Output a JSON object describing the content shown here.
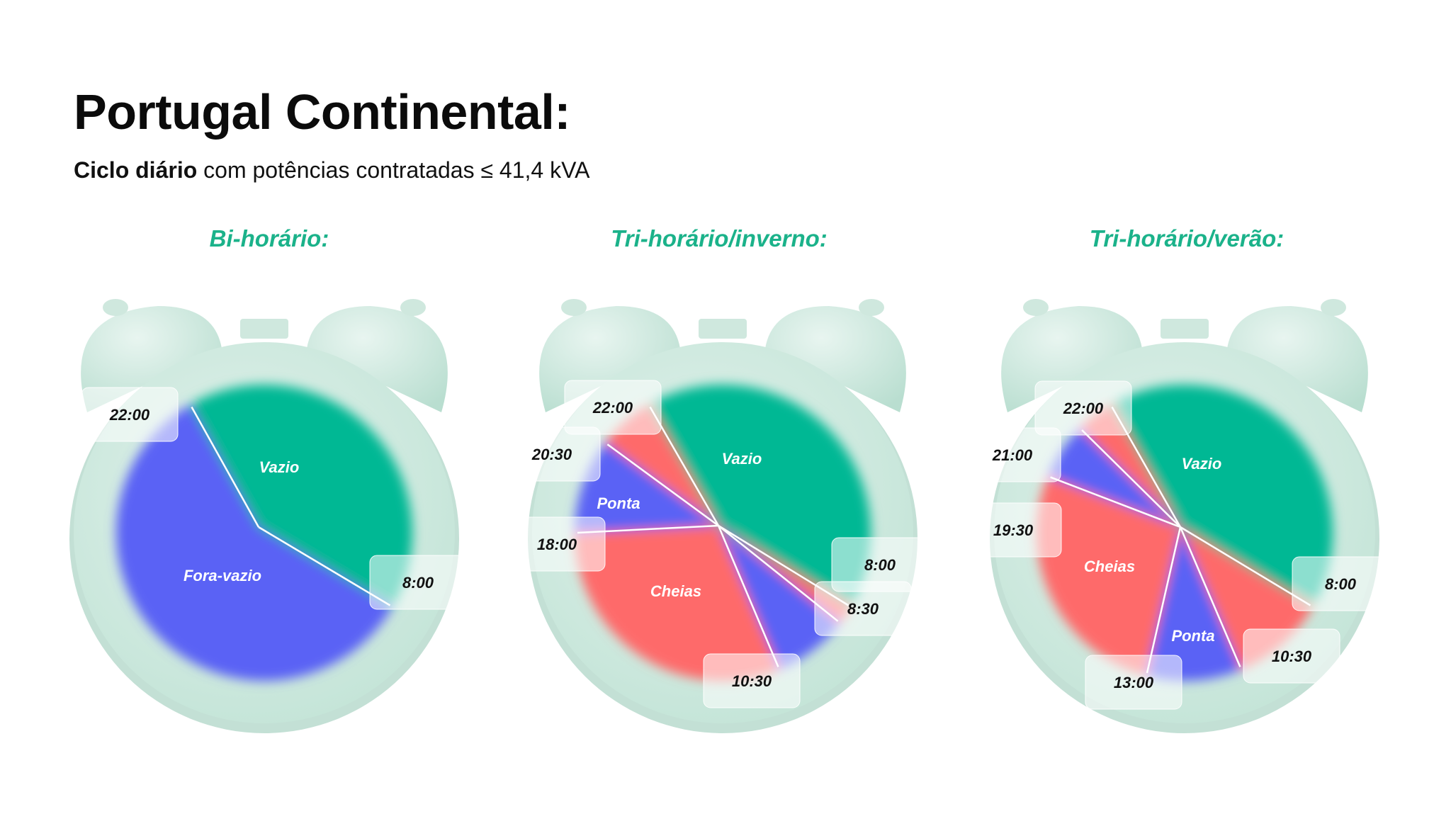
{
  "page": {
    "title": "Portugal Continental:",
    "subtitle_bold": "Ciclo diário",
    "subtitle_rest": " com potências contratadas ≤ 41,4 kVA"
  },
  "colors": {
    "vazio": "#00b894",
    "ponta": "#5a62f5",
    "cheias": "#fe6b6b",
    "clock_body": "#d6ece4",
    "title_accent": "#1bb28a"
  },
  "chart_data": [
    {
      "type": "pie",
      "title": "Bi-horário:",
      "segments": [
        {
          "label": "Vazio",
          "start": "22:00",
          "end": "8:00",
          "category": "vazio"
        },
        {
          "label": "Fora-vazio",
          "start": "8:00",
          "end": "22:00",
          "category": "ponta"
        }
      ],
      "time_labels": [
        "22:00",
        "8:00"
      ]
    },
    {
      "type": "pie",
      "title": "Tri-horário/inverno:",
      "segments": [
        {
          "label": "Vazio",
          "start": "22:00",
          "end": "8:00",
          "category": "vazio"
        },
        {
          "label": "",
          "start": "8:00",
          "end": "8:30",
          "category": "cheias"
        },
        {
          "label": "",
          "start": "8:30",
          "end": "10:30",
          "category": "ponta"
        },
        {
          "label": "Cheias",
          "start": "10:30",
          "end": "18:00",
          "category": "cheias"
        },
        {
          "label": "Ponta",
          "start": "18:00",
          "end": "20:30",
          "category": "ponta"
        },
        {
          "label": "",
          "start": "20:30",
          "end": "22:00",
          "category": "cheias"
        }
      ],
      "time_labels": [
        "22:00",
        "20:30",
        "18:00",
        "8:00",
        "8:30",
        "10:30"
      ]
    },
    {
      "type": "pie",
      "title": "Tri-horário/verão:",
      "segments": [
        {
          "label": "Vazio",
          "start": "22:00",
          "end": "8:00",
          "category": "vazio"
        },
        {
          "label": "",
          "start": "8:00",
          "end": "10:30",
          "category": "cheias"
        },
        {
          "label": "Ponta",
          "start": "10:30",
          "end": "13:00",
          "category": "ponta"
        },
        {
          "label": "Cheias",
          "start": "13:00",
          "end": "19:30",
          "category": "cheias"
        },
        {
          "label": "",
          "start": "19:30",
          "end": "21:00",
          "category": "ponta"
        },
        {
          "label": "",
          "start": "21:00",
          "end": "22:00",
          "category": "cheias"
        }
      ],
      "time_labels": [
        "22:00",
        "21:00",
        "19:30",
        "8:00",
        "10:30",
        "13:00"
      ]
    }
  ]
}
